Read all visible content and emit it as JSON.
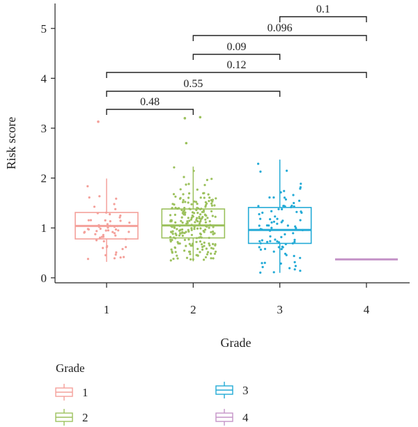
{
  "chart_data": {
    "type": "box",
    "xlabel": "Grade",
    "ylabel": "Risk score",
    "categories": [
      "1",
      "2",
      "3",
      "4"
    ],
    "ylim": [
      -0.1,
      5.5
    ],
    "yticks": [
      "0",
      "1",
      "2",
      "3",
      "4",
      "5"
    ],
    "ytick_values": [
      0,
      1,
      2,
      3,
      4,
      5
    ],
    "grid": false,
    "legend_position": "bottom",
    "legend": {
      "title": "Grade",
      "entries": [
        "1",
        "2",
        "3",
        "4"
      ]
    },
    "colors": [
      "#F4A09A",
      "#9CC15D",
      "#22AAD6",
      "#C594C8"
    ],
    "boxes": [
      {
        "name": "1",
        "whisker_low": 0.32,
        "q1": 0.78,
        "median": 1.04,
        "q3": 1.31,
        "whisker_high": 1.99
      },
      {
        "name": "2",
        "whisker_low": 0.33,
        "q1": 0.8,
        "median": 1.05,
        "q3": 1.38,
        "whisker_high": 2.23
      },
      {
        "name": "3",
        "whisker_low": 0.1,
        "q1": 0.69,
        "median": 0.96,
        "q3": 1.41,
        "whisker_high": 2.37
      },
      {
        "name": "4",
        "whisker_low": 0.37,
        "q1": 0.37,
        "median": 0.37,
        "q3": 0.37,
        "whisker_high": 0.37
      }
    ],
    "outliers": [
      {
        "group": "1",
        "value": 3.13
      },
      {
        "group": "2",
        "value": 3.22
      },
      {
        "group": "2",
        "value": 3.2
      },
      {
        "group": "2",
        "value": 2.7
      }
    ],
    "comparisons": [
      {
        "groups": [
          "1",
          "2"
        ],
        "p": "0.48"
      },
      {
        "groups": [
          "1",
          "3"
        ],
        "p": "0.55"
      },
      {
        "groups": [
          "1",
          "4"
        ],
        "p": "0.12"
      },
      {
        "groups": [
          "2",
          "3"
        ],
        "p": "0.09"
      },
      {
        "groups": [
          "2",
          "4"
        ],
        "p": "0.096"
      },
      {
        "groups": [
          "3",
          "4"
        ],
        "p": "0.1"
      }
    ]
  }
}
